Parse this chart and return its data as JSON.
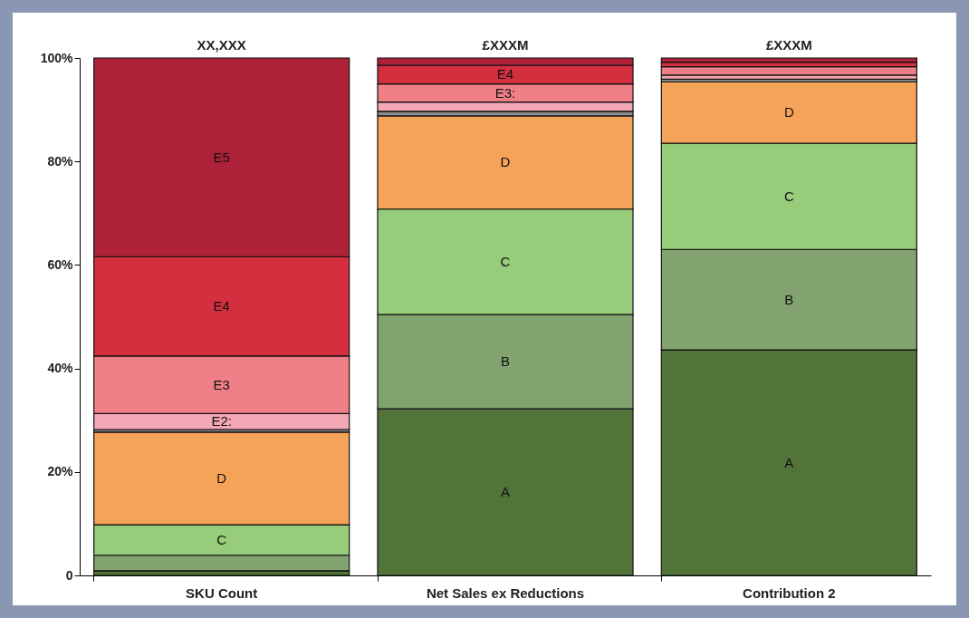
{
  "chart_data": {
    "type": "bar",
    "stacked": true,
    "categories": [
      "SKU Count",
      "Net Sales ex Reductions",
      "Contribution 2"
    ],
    "series": [
      {
        "color": "#52733a",
        "values": [
          0.9,
          32.2,
          43.6
        ],
        "value_labels": [
          null,
          "A",
          "A"
        ]
      },
      {
        "color": "#82a370",
        "values": [
          3.0,
          18.2,
          19.4
        ],
        "value_labels": [
          null,
          "B",
          "B"
        ]
      },
      {
        "color": "#96cc7a",
        "values": [
          5.9,
          20.4,
          20.5
        ],
        "value_labels": [
          "C",
          "C",
          "C"
        ]
      },
      {
        "color": "#f5a358",
        "values": [
          17.9,
          18.0,
          11.9
        ],
        "value_labels": [
          "D",
          "D",
          "D"
        ]
      },
      {
        "color": "#8c8c8c",
        "values": [
          0.5,
          0.9,
          0.5
        ]
      },
      {
        "color": "#f4a7b4",
        "values": [
          3.1,
          1.8,
          0.8
        ],
        "value_labels": [
          "E2:",
          null,
          null
        ]
      },
      {
        "color": "#f07f88",
        "values": [
          11.1,
          3.5,
          1.6
        ],
        "value_labels": [
          "E3",
          "E3:",
          null
        ]
      },
      {
        "color": "#d42f3e",
        "values": [
          19.2,
          3.6,
          0.9
        ],
        "value_labels": [
          "E4",
          "E4",
          null
        ]
      },
      {
        "color": "#ad2238",
        "values": [
          38.4,
          1.4,
          0.8
        ],
        "value_labels": [
          "E5",
          null,
          null
        ]
      }
    ],
    "totals": [
      "XX,XXX",
      "£XXXM",
      "£XXXM"
    ],
    "ylim": [
      0,
      100
    ],
    "yticks": [
      {
        "value": 0,
        "label": "0"
      },
      {
        "value": 20,
        "label": "20%"
      },
      {
        "value": 40,
        "label": "40%"
      },
      {
        "value": 60,
        "label": "60%"
      },
      {
        "value": 80,
        "label": "80%"
      },
      {
        "value": 100,
        "label": "100%"
      }
    ],
    "grid": false
  }
}
